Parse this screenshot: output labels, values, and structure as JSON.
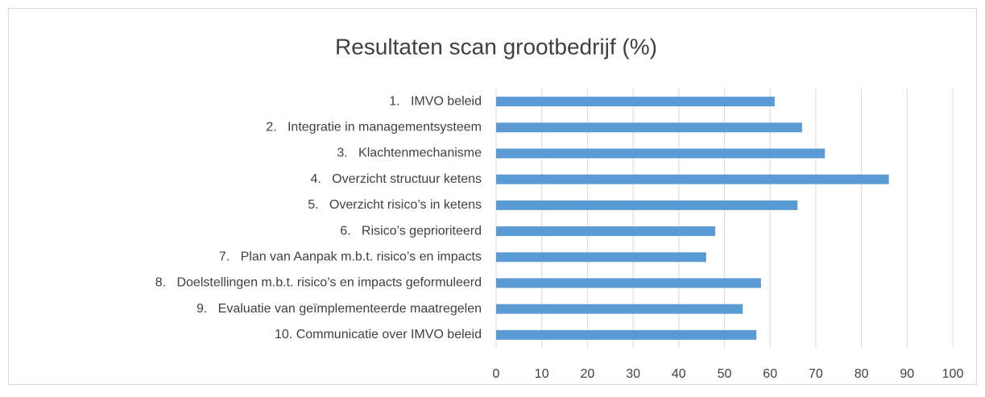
{
  "chart_data": {
    "type": "bar",
    "orientation": "horizontal",
    "title": "Resultaten scan grootbedrijf (%)",
    "categories": [
      "1.   IMVO beleid",
      "2.   Integratie in managementsysteem",
      "3.   Klachtenmechanisme",
      "4.   Overzicht structuur ketens",
      "5.   Overzicht risico’s in ketens",
      "6.   Risico’s geprioriteerd",
      "7.   Plan van Aanpak m.b.t. risico’s en impacts",
      "8.   Doelstellingen m.b.t. risico’s en impacts geformuleerd",
      "9.   Evaluatie van geïmplementeerde maatregelen",
      "10. Communicatie over IMVO beleid"
    ],
    "values": [
      61,
      67,
      72,
      86,
      66,
      48,
      46,
      58,
      54,
      57
    ],
    "color": "#5b9bd5",
    "xlim": [
      0,
      100
    ],
    "xticks": [
      0,
      10,
      20,
      30,
      40,
      50,
      60,
      70,
      80,
      90,
      100
    ],
    "grid": true
  }
}
